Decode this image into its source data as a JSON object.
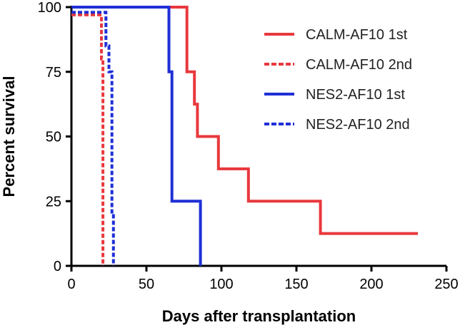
{
  "chart_data": {
    "type": "line",
    "step": true,
    "title": "",
    "xlabel": "Days after transplantation",
    "ylabel": "Percent survival",
    "xlim": [
      0,
      250
    ],
    "ylim": [
      0,
      100
    ],
    "xticks": [
      "0",
      "50",
      "100",
      "150",
      "200",
      "250"
    ],
    "yticks": [
      "0",
      "25",
      "50",
      "75",
      "100"
    ],
    "grid": false,
    "legend_position": "top-right",
    "series": [
      {
        "name": "CALM-AF10 1st",
        "color": "#e8383d",
        "dash": "solid",
        "x": [
          0,
          77,
          77,
          82,
          82,
          84,
          84,
          98,
          98,
          118,
          118,
          166,
          166,
          231
        ],
        "y": [
          100,
          100,
          75,
          75,
          62.5,
          62.5,
          50,
          50,
          37.5,
          37.5,
          25,
          25,
          12.5,
          12.5
        ]
      },
      {
        "name": "CALM-AF10 2nd",
        "color": "#e8383d",
        "dash": "dashed",
        "x": [
          0,
          20,
          20,
          21,
          21
        ],
        "y": [
          97,
          97,
          80,
          80,
          0
        ]
      },
      {
        "name": "NES2-AF10 1st",
        "color": "#1f2fd6",
        "dash": "solid",
        "x": [
          0,
          65,
          65,
          67,
          67,
          86,
          86
        ],
        "y": [
          100,
          100,
          75,
          75,
          25,
          25,
          0
        ]
      },
      {
        "name": "NES2-AF10 2nd",
        "color": "#1f2fd6",
        "dash": "dashed",
        "x": [
          0,
          23,
          23,
          25,
          25,
          27,
          27,
          28,
          28
        ],
        "y": [
          98,
          98,
          85,
          85,
          75,
          75,
          20,
          20,
          0
        ]
      }
    ]
  }
}
